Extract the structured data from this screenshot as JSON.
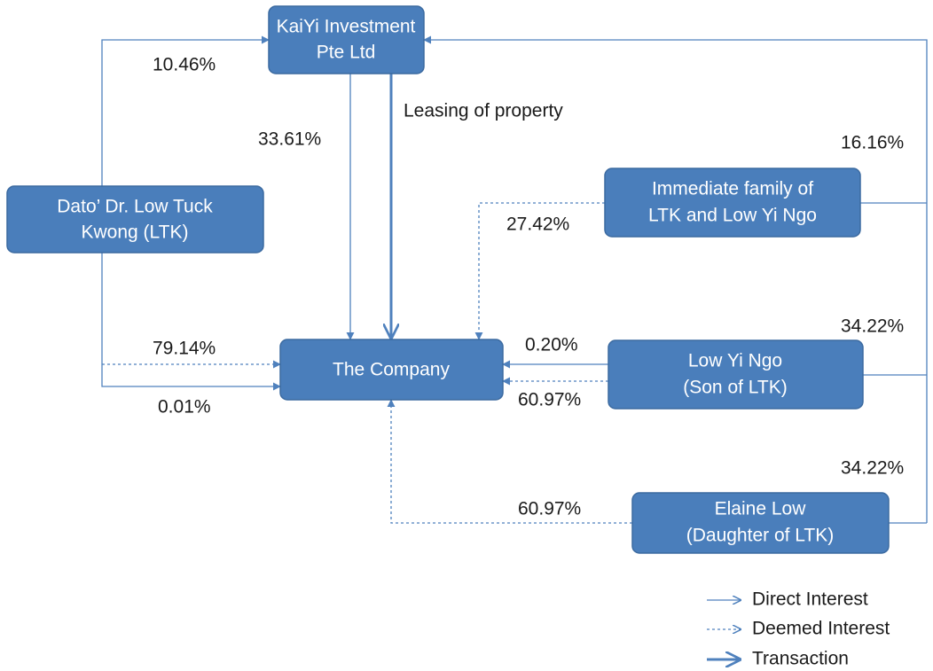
{
  "nodes": [
    {
      "lines": [
        "KaiYi Investment",
        "Pte Ltd"
      ]
    },
    {
      "lines": [
        "Dato’ Dr. Low Tuck",
        "Kwong (LTK)"
      ]
    },
    {
      "lines": [
        "Immediate family of",
        "LTK and Low Yi Ngo"
      ]
    },
    {
      "lines": [
        "The Company"
      ]
    },
    {
      "lines": [
        "Low Yi Ngo",
        "(Son of LTK)"
      ]
    },
    {
      "lines": [
        "Elaine Low",
        "(Daughter of LTK)"
      ]
    }
  ],
  "edges": [
    {
      "label": "10.46%"
    },
    {
      "label": "79.14%"
    },
    {
      "label": "0.01%"
    },
    {
      "label": "33.61%"
    },
    {
      "label": "Leasing of property"
    },
    {
      "label": "16.16%"
    },
    {
      "label": "27.42%"
    },
    {
      "label": "34.22%"
    },
    {
      "label": "0.20%"
    },
    {
      "label": "60.97%"
    },
    {
      "label": "34.22%"
    },
    {
      "label": "60.97%"
    }
  ],
  "legend": [
    "Direct Interest",
    "Deemed Interest",
    "Transaction"
  ]
}
